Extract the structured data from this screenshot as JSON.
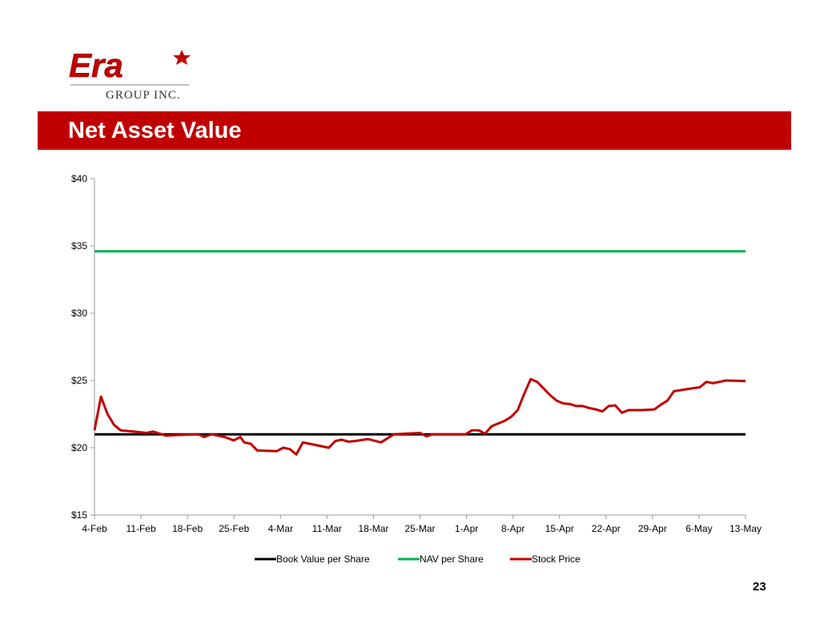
{
  "brand": {
    "wordmark": "Era",
    "subtitle": "GROUP INC.",
    "red": "#c00000"
  },
  "slide": {
    "title": "Net Asset Value",
    "page_number": "23"
  },
  "chart_data": {
    "type": "line",
    "categories": [
      "4-Feb",
      "11-Feb",
      "18-Feb",
      "25-Feb",
      "4-Mar",
      "11-Mar",
      "18-Mar",
      "25-Mar",
      "1-Apr",
      "8-Apr",
      "15-Apr",
      "22-Apr",
      "29-Apr",
      "6-May",
      "13-May"
    ],
    "ylim": [
      15,
      40
    ],
    "yticks": [
      15,
      20,
      25,
      30,
      35,
      40
    ],
    "ytick_labels": [
      "$15",
      "$20",
      "$25",
      "$30",
      "$35",
      "$40"
    ],
    "grid": false,
    "legend_position": "bottom",
    "series": [
      {
        "name": "Book Value per Share",
        "color": "#000000",
        "points": [
          [
            0,
            21.0
          ],
          [
            100,
            21.0
          ]
        ]
      },
      {
        "name": "NAV per Share",
        "color": "#00b050",
        "points": [
          [
            0,
            34.6
          ],
          [
            100,
            34.6
          ]
        ]
      },
      {
        "name": "Stock Price",
        "color": "#c00000",
        "points": [
          [
            0,
            21.3
          ],
          [
            1,
            23.8
          ],
          [
            2,
            22.5
          ],
          [
            3,
            21.7
          ],
          [
            4,
            21.3
          ],
          [
            6,
            21.2
          ],
          [
            8,
            21.1
          ],
          [
            9,
            21.2
          ],
          [
            11,
            20.9
          ],
          [
            13,
            20.95
          ],
          [
            16,
            21.0
          ],
          [
            16.8,
            20.8
          ],
          [
            18,
            21.0
          ],
          [
            20,
            20.8
          ],
          [
            21.4,
            20.55
          ],
          [
            22.4,
            20.8
          ],
          [
            23,
            20.4
          ],
          [
            24,
            20.3
          ],
          [
            25,
            19.8
          ],
          [
            28,
            19.75
          ],
          [
            29,
            20.0
          ],
          [
            30,
            19.9
          ],
          [
            31,
            19.5
          ],
          [
            32,
            20.4
          ],
          [
            34,
            20.2
          ],
          [
            36,
            20.0
          ],
          [
            37,
            20.5
          ],
          [
            38,
            20.6
          ],
          [
            39,
            20.45
          ],
          [
            40,
            20.5
          ],
          [
            42,
            20.65
          ],
          [
            44,
            20.4
          ],
          [
            46,
            21.0
          ],
          [
            50,
            21.1
          ],
          [
            51,
            20.85
          ],
          [
            52,
            21.0
          ],
          [
            55,
            21.0
          ],
          [
            57,
            21.0
          ],
          [
            58,
            21.3
          ],
          [
            59,
            21.3
          ],
          [
            60,
            21.05
          ],
          [
            61,
            21.6
          ],
          [
            63,
            22.0
          ],
          [
            64,
            22.3
          ],
          [
            65,
            22.8
          ],
          [
            66,
            24.0
          ],
          [
            67,
            25.1
          ],
          [
            68,
            24.9
          ],
          [
            69,
            24.4
          ],
          [
            70,
            23.9
          ],
          [
            71,
            23.5
          ],
          [
            72,
            23.3
          ],
          [
            73,
            23.25
          ],
          [
            74,
            23.1
          ],
          [
            75,
            23.1
          ],
          [
            76,
            22.95
          ],
          [
            77,
            22.85
          ],
          [
            78,
            22.7
          ],
          [
            79,
            23.1
          ],
          [
            80,
            23.15
          ],
          [
            81,
            22.6
          ],
          [
            82,
            22.8
          ],
          [
            84,
            22.8
          ],
          [
            86,
            22.85
          ],
          [
            87,
            23.2
          ],
          [
            88,
            23.5
          ],
          [
            89,
            24.2
          ],
          [
            91,
            24.35
          ],
          [
            93,
            24.5
          ],
          [
            94,
            24.9
          ],
          [
            95,
            24.8
          ],
          [
            96,
            24.9
          ],
          [
            97,
            25.0
          ],
          [
            100,
            24.95
          ]
        ]
      }
    ]
  }
}
